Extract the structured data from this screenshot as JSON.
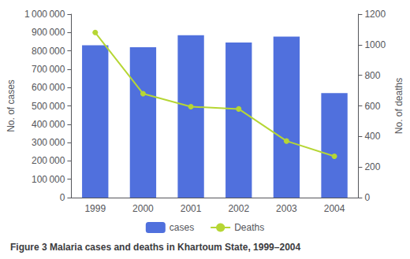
{
  "chart_data": {
    "type": "bar",
    "title": "Figure 3 Malaria cases and deaths in Khartoum State, 1999–2004",
    "categories": [
      "1999",
      "2000",
      "2001",
      "2002",
      "2003",
      "2004"
    ],
    "series": [
      {
        "name": "cases",
        "type": "bar",
        "values": [
          830000,
          820000,
          885000,
          845000,
          878000,
          570000
        ]
      },
      {
        "name": "Deaths",
        "type": "line",
        "axis": "y2",
        "marker": "circle",
        "values": [
          1080,
          680,
          595,
          580,
          370,
          270
        ]
      }
    ],
    "ylabel": "No. of cases",
    "y2label": "No. of deaths",
    "ylim": [
      0,
      1000000
    ],
    "yticks": [
      0,
      {
        "value": 100000,
        "label": "100 000"
      },
      {
        "value": 200000,
        "label": "200 000"
      },
      {
        "value": 300000,
        "label": "300 000"
      },
      {
        "value": 400000,
        "label": "400 000"
      },
      {
        "value": 500000,
        "label": "500 000"
      },
      {
        "value": 600000,
        "label": "600 000"
      },
      {
        "value": 700000,
        "label": "700 000"
      },
      {
        "value": 800000,
        "label": "800 000"
      },
      {
        "value": 900000,
        "label": "900 000"
      },
      {
        "value": 1000000,
        "label": "1 000 000"
      }
    ],
    "y2lim": [
      0,
      1200
    ],
    "y2ticks": [
      0,
      200,
      400,
      600,
      800,
      1000,
      1200
    ],
    "grid": false,
    "legend": "bottom"
  }
}
